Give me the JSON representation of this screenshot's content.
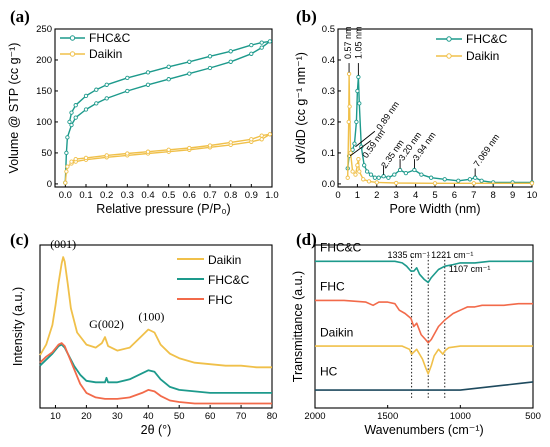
{
  "colors": {
    "teal": "#1d9a8c",
    "gold": "#f0c04a",
    "orange": "#f26a4a",
    "navy": "#1e4a5e"
  },
  "chart_data": [
    {
      "panel": "(a)",
      "type": "line",
      "xlabel": "Relative pressure (P/P₀)",
      "ylabel": "Volume @ STP (cc g⁻¹)",
      "xlim": [
        -0.05,
        1.0
      ],
      "ylim": [
        -5,
        250
      ],
      "xticks": [
        "0.0",
        "0.1",
        "0.2",
        "0.3",
        "0.4",
        "0.5",
        "0.6",
        "0.7",
        "0.8",
        "0.9",
        "1.0"
      ],
      "yticks": [
        "0",
        "50",
        "100",
        "150",
        "200",
        "250"
      ],
      "legend": [
        "FHC&C",
        "Daikin"
      ],
      "series": [
        {
          "name": "FHC&C",
          "color": "teal",
          "x": [
            0.0,
            0.005,
            0.01,
            0.03,
            0.05,
            0.1,
            0.15,
            0.2,
            0.3,
            0.4,
            0.5,
            0.6,
            0.7,
            0.8,
            0.9,
            0.95,
            0.99,
            0.95,
            0.9,
            0.8,
            0.7,
            0.6,
            0.5,
            0.4,
            0.3,
            0.2,
            0.15,
            0.1,
            0.05,
            0.03,
            0.02
          ],
          "y": [
            2,
            50,
            75,
            95,
            107,
            120,
            130,
            138,
            150,
            160,
            169,
            178,
            187,
            197,
            210,
            220,
            230,
            228,
            224,
            214,
            206,
            197,
            189,
            180,
            171,
            160,
            152,
            142,
            127,
            115,
            100
          ]
        },
        {
          "name": "Daikin",
          "color": "gold",
          "x": [
            0.0,
            0.005,
            0.01,
            0.03,
            0.05,
            0.1,
            0.2,
            0.3,
            0.4,
            0.5,
            0.6,
            0.7,
            0.8,
            0.9,
            0.95,
            0.99,
            0.95,
            0.9,
            0.8,
            0.7,
            0.6,
            0.5,
            0.4,
            0.3,
            0.2,
            0.1,
            0.05,
            0.03
          ],
          "y": [
            2,
            20,
            28,
            33,
            36,
            39,
            43,
            46,
            49,
            52,
            55,
            59,
            63,
            68,
            72,
            80,
            78,
            72,
            67,
            62,
            58,
            55,
            52,
            49,
            46,
            42,
            40,
            36
          ]
        }
      ]
    },
    {
      "panel": "(b)",
      "type": "line",
      "xlabel": "Pore Width (nm)",
      "ylabel": "dV/dD (cc g⁻¹ nm⁻¹)",
      "xlim": [
        0,
        10
      ],
      "ylim": [
        -0.01,
        0.5
      ],
      "xticks": [
        "0",
        "1",
        "2",
        "3",
        "4",
        "5",
        "6",
        "7",
        "8",
        "9",
        "10"
      ],
      "yticks": [
        "0.0",
        "0.1",
        "0.2",
        "0.3",
        "0.4",
        "0.5"
      ],
      "legend": [
        "FHC&C",
        "Daikin"
      ],
      "annotations": [
        "0.57 nm",
        "1.05 nm",
        "0.59 nm",
        "0.89 nm",
        "2.35 nm",
        "3.20 nm",
        "3.94 nm",
        "7.069 nm"
      ],
      "series": [
        {
          "name": "FHC&C",
          "color": "teal",
          "x": [
            0.5,
            0.57,
            0.65,
            0.75,
            0.85,
            0.95,
            1.0,
            1.05,
            1.1,
            1.2,
            1.35,
            1.5,
            1.7,
            1.9,
            2.1,
            2.35,
            2.6,
            2.9,
            3.2,
            3.5,
            3.94,
            4.3,
            4.8,
            5.5,
            6.2,
            6.8,
            7.07,
            7.4,
            8.0,
            9.0,
            10.0
          ],
          "y": [
            0.05,
            0.09,
            0.1,
            0.11,
            0.13,
            0.2,
            0.3,
            0.345,
            0.26,
            0.12,
            0.06,
            0.04,
            0.03,
            0.02,
            0.02,
            0.025,
            0.02,
            0.03,
            0.045,
            0.035,
            0.045,
            0.03,
            0.02,
            0.015,
            0.01,
            0.015,
            0.02,
            0.01,
            0.005,
            0.005,
            0.005
          ]
        },
        {
          "name": "Daikin",
          "color": "gold",
          "x": [
            0.5,
            0.55,
            0.57,
            0.6,
            0.65,
            0.75,
            0.9,
            1.0,
            1.05,
            1.1,
            1.3,
            1.6,
            2.0,
            3.0,
            5.0,
            7.0,
            10.0
          ],
          "y": [
            0.02,
            0.2,
            0.355,
            0.25,
            0.1,
            0.04,
            0.03,
            0.06,
            0.08,
            0.04,
            0.015,
            0.008,
            0.005,
            0.003,
            0.002,
            0.002,
            0.002
          ]
        }
      ]
    },
    {
      "panel": "(c)",
      "type": "line",
      "xlabel": "2θ (°)",
      "ylabel": "Intensity (a.u.)",
      "xlim": [
        5,
        80
      ],
      "xticks": [
        "10",
        "20",
        "30",
        "40",
        "50",
        "60",
        "70",
        "80"
      ],
      "legend": [
        "Daikin",
        "FHC&C",
        "FHC"
      ],
      "annotations": [
        "(001)",
        "G(002)",
        "(100)"
      ],
      "series": [
        {
          "name": "Daikin",
          "color": "gold",
          "x": [
            5,
            7,
            9,
            10,
            11,
            12,
            12.5,
            13,
            14,
            15,
            17,
            20,
            23,
            25,
            26,
            27,
            30,
            34,
            38,
            40,
            42,
            44,
            47,
            50,
            55,
            60,
            65,
            70,
            75,
            80
          ],
          "y": [
            0.35,
            0.42,
            0.55,
            0.68,
            0.83,
            0.96,
            1.0,
            0.97,
            0.82,
            0.66,
            0.5,
            0.42,
            0.4,
            0.43,
            0.47,
            0.41,
            0.38,
            0.4,
            0.48,
            0.52,
            0.5,
            0.42,
            0.36,
            0.33,
            0.3,
            0.29,
            0.28,
            0.28,
            0.27,
            0.27
          ]
        },
        {
          "name": "FHC&C",
          "color": "teal",
          "x": [
            5,
            7,
            9,
            11,
            12,
            13,
            14,
            16,
            18,
            20,
            23,
            26,
            26.5,
            27,
            30,
            34,
            38,
            40,
            42,
            44,
            47,
            50,
            55,
            60,
            65,
            70,
            75,
            80
          ],
          "y": [
            0.28,
            0.32,
            0.36,
            0.41,
            0.42,
            0.4,
            0.36,
            0.28,
            0.22,
            0.18,
            0.17,
            0.17,
            0.2,
            0.17,
            0.17,
            0.19,
            0.23,
            0.25,
            0.24,
            0.19,
            0.14,
            0.12,
            0.11,
            0.1,
            0.1,
            0.1,
            0.1,
            0.1
          ]
        },
        {
          "name": "FHC",
          "color": "orange",
          "x": [
            5,
            7,
            9,
            11,
            12,
            13,
            14,
            16,
            18,
            20,
            23,
            26,
            30,
            34,
            38,
            40,
            42,
            44,
            47,
            50,
            55,
            60,
            65,
            70,
            75,
            80
          ],
          "y": [
            0.3,
            0.34,
            0.37,
            0.42,
            0.43,
            0.41,
            0.36,
            0.26,
            0.16,
            0.1,
            0.07,
            0.06,
            0.06,
            0.07,
            0.1,
            0.12,
            0.11,
            0.08,
            0.05,
            0.04,
            0.03,
            0.03,
            0.03,
            0.03,
            0.03,
            0.03
          ]
        }
      ]
    },
    {
      "panel": "(d)",
      "type": "line",
      "xlabel": "Wavenumbers (cm⁻¹)",
      "ylabel": "Transmittance (a.u.)",
      "xlim": [
        2000,
        500
      ],
      "xticks": [
        "2000",
        "1500",
        "1000",
        "500"
      ],
      "legend": [
        "FHC&C",
        "FHC",
        "Daikin",
        "HC"
      ],
      "annotations": [
        "1335 cm⁻¹",
        "1221 cm⁻¹",
        "1107 cm⁻¹"
      ],
      "series": [
        {
          "name": "FHC&C",
          "color": "teal",
          "x": [
            2000,
            1800,
            1600,
            1450,
            1400,
            1370,
            1340,
            1320,
            1300,
            1280,
            1250,
            1221,
            1200,
            1150,
            1107,
            1050,
            1000,
            900,
            800,
            700,
            600,
            500
          ],
          "y": [
            0.9,
            0.9,
            0.9,
            0.9,
            0.89,
            0.87,
            0.84,
            0.84,
            0.86,
            0.82,
            0.79,
            0.77,
            0.8,
            0.85,
            0.87,
            0.88,
            0.89,
            0.89,
            0.9,
            0.9,
            0.9,
            0.9
          ]
        },
        {
          "name": "FHC",
          "color": "orange",
          "x": [
            2000,
            1800,
            1650,
            1600,
            1560,
            1500,
            1450,
            1420,
            1380,
            1340,
            1320,
            1300,
            1270,
            1240,
            1221,
            1200,
            1150,
            1107,
            1050,
            1000,
            950,
            900,
            850,
            800,
            700,
            600,
            500
          ],
          "y": [
            0.66,
            0.66,
            0.65,
            0.63,
            0.65,
            0.65,
            0.64,
            0.6,
            0.58,
            0.55,
            0.5,
            0.52,
            0.45,
            0.42,
            0.4,
            0.42,
            0.5,
            0.54,
            0.58,
            0.6,
            0.62,
            0.62,
            0.63,
            0.63,
            0.63,
            0.64,
            0.64
          ]
        },
        {
          "name": "Daikin",
          "color": "gold",
          "x": [
            2000,
            1800,
            1600,
            1450,
            1400,
            1350,
            1335,
            1300,
            1260,
            1240,
            1221,
            1200,
            1180,
            1150,
            1120,
            1107,
            1080,
            1000,
            900,
            800,
            700,
            600,
            500
          ],
          "y": [
            0.38,
            0.38,
            0.38,
            0.38,
            0.38,
            0.36,
            0.33,
            0.36,
            0.3,
            0.25,
            0.21,
            0.26,
            0.32,
            0.36,
            0.33,
            0.35,
            0.37,
            0.38,
            0.38,
            0.38,
            0.38,
            0.38,
            0.38
          ]
        },
        {
          "name": "HC",
          "color": "navy",
          "x": [
            2000,
            1800,
            1600,
            1400,
            1200,
            1000,
            900,
            800,
            700,
            600,
            500
          ],
          "y": [
            0.11,
            0.11,
            0.11,
            0.11,
            0.11,
            0.11,
            0.12,
            0.13,
            0.14,
            0.15,
            0.16
          ]
        }
      ]
    }
  ]
}
